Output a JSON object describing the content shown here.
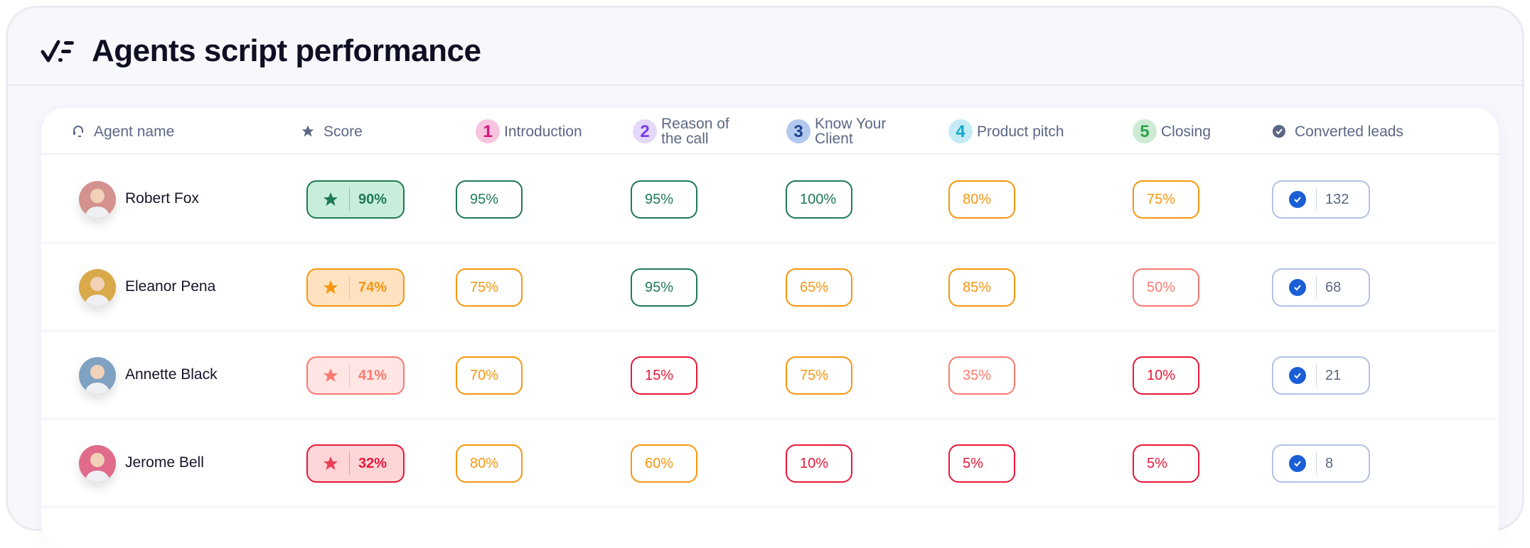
{
  "title": "Agents script performance",
  "columns": [
    {
      "label": "Agent  name",
      "icon": "headset-icon"
    },
    {
      "label": "Score",
      "icon": "star-icon"
    },
    {
      "label": "Introduction",
      "num": "1",
      "bg": "#f6c4df",
      "fg": "#d6137a"
    },
    {
      "label": "Reason of the call",
      "num": "2",
      "bg": "#e4d8fb",
      "fg": "#7c3aed"
    },
    {
      "label": "Know Your Client",
      "num": "3",
      "bg": "#b3c8ee",
      "fg": "#1d3f8f"
    },
    {
      "label": "Product pitch",
      "num": "4",
      "bg": "#c4ebf3",
      "fg": "#10a8c9"
    },
    {
      "label": "Closing",
      "num": "5",
      "bg": "#cdebd4",
      "fg": "#2fa34a"
    },
    {
      "label": "Converted leads",
      "icon": "check-circle-icon"
    }
  ],
  "colors": {
    "green": "#1f7a55",
    "orange": "#f7960f",
    "salmon": "#fb7a70",
    "red": "#e8183a",
    "blue": "#1a5fd6"
  },
  "rows": [
    {
      "name": "Robert Fox",
      "avatar_bg": "#d4928e",
      "score": "90%",
      "score_level": "green",
      "steps": [
        "95%",
        "95%",
        "100%",
        "80%",
        "75%"
      ],
      "levels": [
        "green",
        "green",
        "green",
        "orange",
        "orange"
      ],
      "converted": "132"
    },
    {
      "name": "Eleanor Pena",
      "avatar_bg": "#d9a94a",
      "score": "74%",
      "score_level": "orange",
      "steps": [
        "75%",
        "95%",
        "65%",
        "85%",
        "50%"
      ],
      "levels": [
        "orange",
        "green",
        "orange",
        "orange",
        "salmon"
      ],
      "converted": "68"
    },
    {
      "name": "Annette Black",
      "avatar_bg": "#7fa1c2",
      "score": "41%",
      "score_level": "salmon",
      "steps": [
        "70%",
        "15%",
        "75%",
        "35%",
        "10%"
      ],
      "levels": [
        "orange",
        "red",
        "orange",
        "salmon",
        "red"
      ],
      "converted": "21"
    },
    {
      "name": "Jerome Bell",
      "avatar_bg": "#e06b8a",
      "score": "32%",
      "score_level": "red",
      "steps": [
        "80%",
        "60%",
        "10%",
        "5%",
        "5%"
      ],
      "levels": [
        "orange",
        "orange",
        "red",
        "red",
        "red"
      ],
      "converted": "8"
    }
  ]
}
